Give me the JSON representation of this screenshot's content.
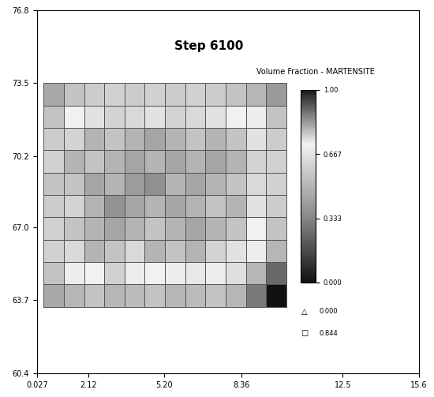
{
  "chart_data": {
    "type": "mesh_heatmap",
    "title": "Step 6100",
    "xlim": [
      0.027,
      15.6
    ],
    "xticks": [
      0.027,
      2.12,
      {
        "value": 5.2,
        "label": "5.20"
      },
      8.36,
      12.5,
      15.6
    ],
    "ylim": [
      60.4,
      76.8
    ],
    "yticks": [
      60.4,
      63.7,
      {
        "value": 67.0,
        "label": "67.0"
      },
      70.2,
      73.5,
      76.8
    ],
    "x_edges": [
      0.3,
      1.125,
      1.95,
      2.775,
      3.6,
      4.425,
      5.25,
      6.075,
      6.9,
      7.725,
      8.55,
      9.375,
      10.2
    ],
    "y_edges": [
      63.4,
      64.41,
      65.42,
      66.43,
      67.44,
      68.45,
      69.46,
      70.47,
      71.48,
      72.49,
      73.5
    ],
    "cells": [
      [
        0.45,
        0.5,
        0.55,
        0.5,
        0.52,
        0.55,
        0.5,
        0.52,
        0.55,
        0.5,
        0.3,
        0.0
      ],
      [
        0.55,
        0.7,
        0.72,
        0.6,
        0.7,
        0.72,
        0.7,
        0.68,
        0.7,
        0.65,
        0.5,
        0.25
      ],
      [
        0.6,
        0.75,
        0.8,
        0.78,
        0.75,
        0.8,
        0.78,
        0.8,
        0.76,
        0.74,
        0.7,
        0.5
      ],
      [
        0.6,
        0.78,
        0.8,
        0.82,
        0.8,
        0.78,
        0.8,
        0.82,
        0.8,
        0.78,
        0.72,
        0.55
      ],
      [
        0.58,
        0.76,
        0.8,
        0.84,
        0.82,
        0.8,
        0.82,
        0.8,
        0.78,
        0.8,
        0.74,
        0.58
      ],
      [
        0.55,
        0.78,
        0.82,
        0.8,
        0.83,
        0.844,
        0.8,
        0.82,
        0.8,
        0.78,
        0.75,
        0.6
      ],
      [
        0.6,
        0.8,
        0.78,
        0.8,
        0.82,
        0.8,
        0.82,
        0.8,
        0.82,
        0.8,
        0.76,
        0.6
      ],
      [
        0.58,
        0.76,
        0.8,
        0.78,
        0.8,
        0.82,
        0.8,
        0.78,
        0.8,
        0.78,
        0.74,
        0.58
      ],
      [
        0.55,
        0.72,
        0.74,
        0.76,
        0.75,
        0.74,
        0.76,
        0.75,
        0.74,
        0.72,
        0.7,
        0.55
      ],
      [
        0.45,
        0.55,
        0.58,
        0.6,
        0.58,
        0.6,
        0.58,
        0.6,
        0.58,
        0.55,
        0.5,
        0.4
      ]
    ],
    "colorbar_label": "Volume Fraction - MARTENSITE",
    "colorbar_range": [
      0,
      1
    ],
    "colorbar_ticks": [
      {
        "value": 0,
        "label": "0.000"
      },
      0.333,
      0.667,
      {
        "value": 1,
        "label": "1.00"
      }
    ],
    "extrema": [
      {
        "symbol": "△",
        "value": 0.0,
        "label": "0.000"
      },
      {
        "symbol": "□",
        "value": 0.844,
        "label": "0.844"
      }
    ]
  }
}
